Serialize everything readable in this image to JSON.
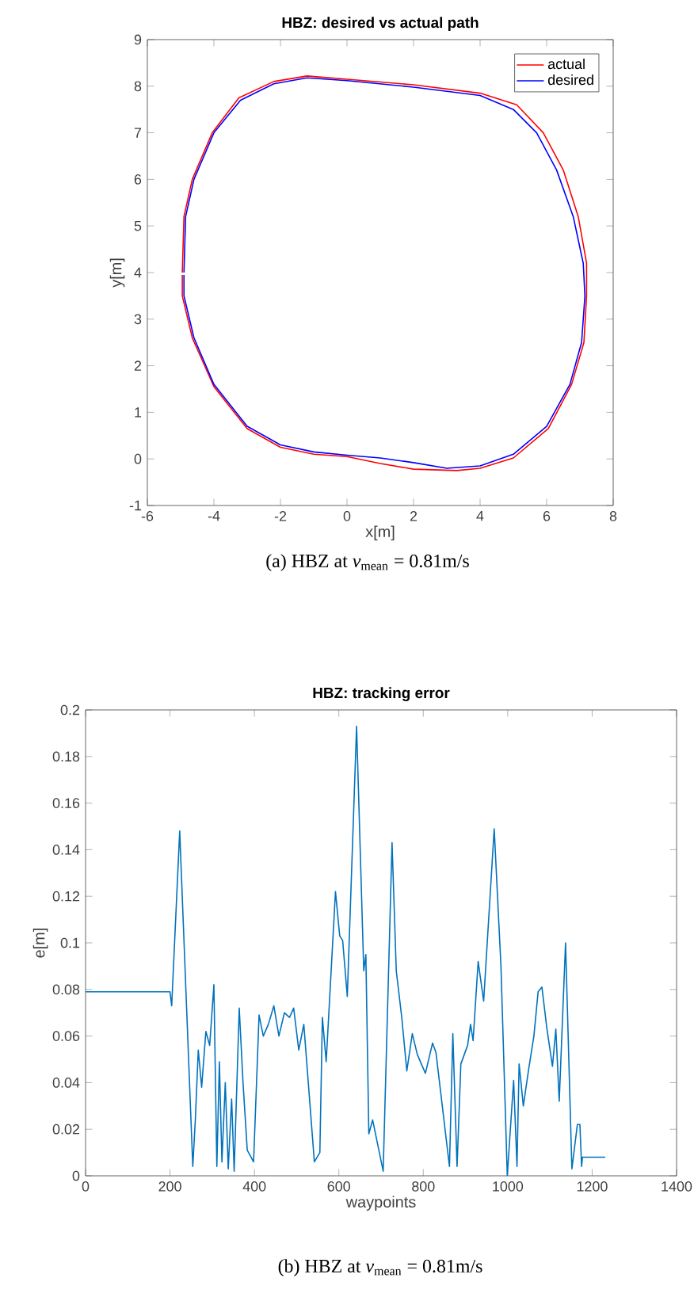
{
  "chart_data": [
    {
      "type": "line",
      "title": "HBZ: desired vs actual path",
      "xlabel": "x[m]",
      "ylabel": "y[m]",
      "xlim": [
        -6,
        8
      ],
      "ylim": [
        -1,
        9
      ],
      "xticks": [
        -6,
        -4,
        -2,
        0,
        2,
        4,
        6,
        8
      ],
      "yticks": [
        -1,
        0,
        1,
        2,
        3,
        4,
        5,
        6,
        7,
        8,
        9
      ],
      "legend": "top right",
      "series": [
        {
          "name": "actual",
          "color": "#ff0000",
          "x": [
            -4.95,
            -4.9,
            -4.65,
            -4.05,
            -3.25,
            -2.2,
            -1.2,
            0,
            2,
            4,
            5.1,
            5.9,
            6.5,
            6.95,
            7.2,
            7.2,
            7.12,
            6.75,
            6.05,
            5,
            4,
            3.3,
            2,
            1,
            0,
            -1,
            -2,
            -3,
            -4,
            -4.65,
            -4.95,
            -4.95
          ],
          "values": [
            4,
            5.2,
            6,
            7,
            7.75,
            8.1,
            8.22,
            8.15,
            8.03,
            7.85,
            7.6,
            7,
            6.2,
            5.2,
            4.2,
            3.5,
            2.5,
            1.6,
            0.65,
            0.02,
            -0.2,
            -0.25,
            -0.22,
            -0.1,
            0.05,
            0.1,
            0.25,
            0.65,
            1.55,
            2.6,
            3.5,
            3.95
          ]
        },
        {
          "name": "desired",
          "color": "#0000ff",
          "x": [
            -4.9,
            -4.85,
            -4.6,
            -4.0,
            -3.2,
            -2.2,
            -1.2,
            0,
            2,
            4,
            5.0,
            5.7,
            6.3,
            6.8,
            7.1,
            7.15,
            7.05,
            6.7,
            6,
            5,
            4,
            3,
            2,
            1,
            0,
            -1,
            -2,
            -3,
            -4,
            -4.6,
            -4.9,
            -4.9
          ],
          "values": [
            4,
            5.2,
            6,
            7,
            7.7,
            8.05,
            8.18,
            8.12,
            7.98,
            7.8,
            7.5,
            7,
            6.2,
            5.2,
            4.2,
            3.5,
            2.5,
            1.6,
            0.7,
            0.1,
            -0.15,
            -0.2,
            -0.08,
            0.02,
            0.08,
            0.15,
            0.3,
            0.7,
            1.6,
            2.6,
            3.5,
            3.95
          ]
        }
      ],
      "annotations": [
        "(a) HBZ at *v*$_{mean}$ = 0.81m/s"
      ]
    },
    {
      "type": "line",
      "title": "HBZ: tracking error",
      "xlabel": "waypoints",
      "ylabel": "e[m]",
      "xlim": [
        0,
        1400
      ],
      "ylim": [
        0,
        0.2
      ],
      "xticks": [
        0,
        200,
        400,
        600,
        800,
        1000,
        1200,
        1400
      ],
      "yticks": [
        0,
        0.02,
        0.04,
        0.06,
        0.08,
        0.1,
        0.12,
        0.14,
        0.16,
        0.18,
        0.2
      ],
      "series": [
        {
          "color": "#0072bd",
          "x": [
            0,
            200,
            204,
            223,
            254,
            260,
            267,
            275,
            285,
            294,
            304,
            311,
            317,
            323,
            331,
            338,
            346,
            352,
            364,
            373,
            383,
            398,
            411,
            421,
            433,
            446,
            458,
            471,
            483,
            493,
            505,
            517,
            542,
            555,
            561,
            570,
            592,
            602,
            609,
            620,
            642,
            659,
            664,
            671,
            680,
            705,
            726,
            736,
            749,
            761,
            774,
            786,
            805,
            822,
            830,
            862,
            870,
            880,
            889,
            905,
            912,
            918,
            930,
            943,
            968,
            984,
            999,
            1014,
            1022,
            1027,
            1037,
            1049,
            1062,
            1072,
            1081,
            1093,
            1106,
            1114,
            1122,
            1137,
            1152,
            1165,
            1171,
            1175,
            1177,
            1231
          ],
          "values": [
            0.079,
            0.079,
            0.073,
            0.148,
            0.004,
            0.024,
            0.054,
            0.038,
            0.062,
            0.056,
            0.082,
            0.004,
            0.049,
            0.006,
            0.04,
            0.003,
            0.033,
            0.002,
            0.072,
            0.04,
            0.011,
            0.006,
            0.069,
            0.06,
            0.065,
            0.073,
            0.06,
            0.07,
            0.068,
            0.072,
            0.054,
            0.065,
            0.006,
            0.01,
            0.068,
            0.049,
            0.122,
            0.103,
            0.101,
            0.077,
            0.193,
            0.088,
            0.095,
            0.018,
            0.024,
            0.002,
            0.143,
            0.088,
            0.068,
            0.045,
            0.061,
            0.052,
            0.044,
            0.057,
            0.053,
            0.004,
            0.061,
            0.004,
            0.048,
            0.056,
            0.065,
            0.058,
            0.092,
            0.075,
            0.149,
            0.09,
            0.0,
            0.041,
            0.004,
            0.048,
            0.03,
            0.045,
            0.06,
            0.079,
            0.081,
            0.063,
            0.047,
            0.063,
            0.032,
            0.1,
            0.003,
            0.022,
            0.022,
            0.004,
            0.008,
            0.008
          ]
        }
      ],
      "annotations": [
        "(b) HBZ at *v*$_{mean}$ = 0.81m/s"
      ]
    }
  ]
}
